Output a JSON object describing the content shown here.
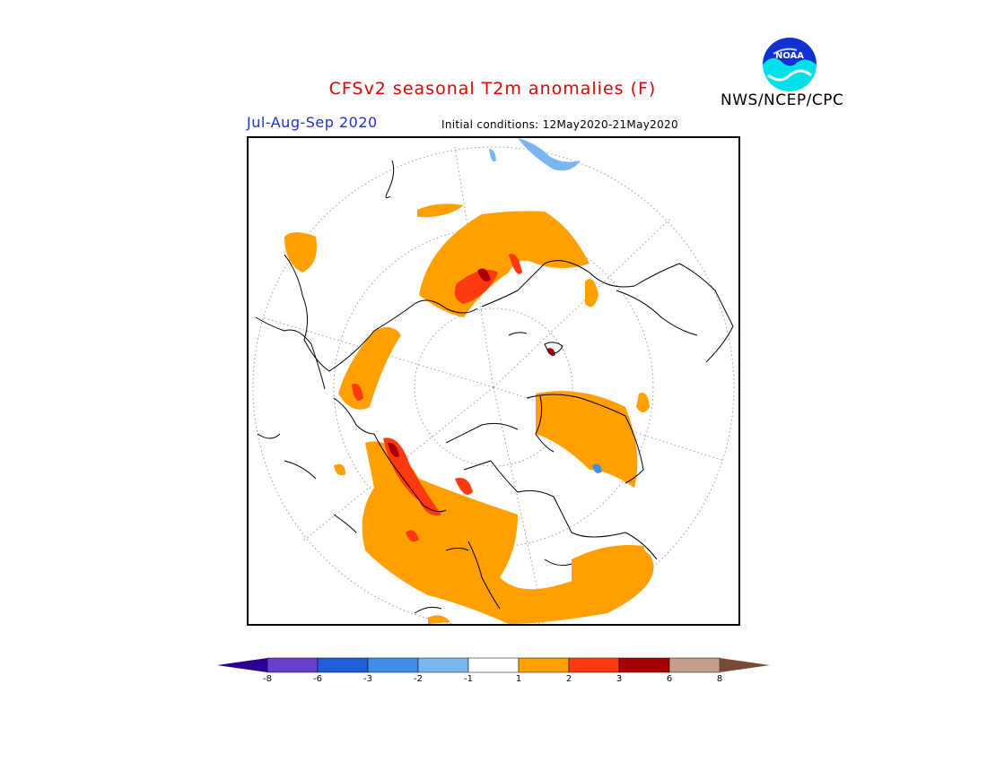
{
  "header": {
    "title": "CFSv2 seasonal T2m anomalies (F)",
    "season": "Jul-Aug-Sep 2020",
    "initial_conditions": "Initial conditions: 12May2020-21May2020",
    "agency": "NWS/NCEP/CPC",
    "logo_text": "NOAA"
  },
  "colors": {
    "title": "#e00000",
    "season": "#2030d0",
    "warm_1_2": "#ff9f00",
    "warm_2_3": "#ff3a10",
    "warm_3_6": "#a80000"
  },
  "legend": {
    "ticks": [
      "-8",
      "-6",
      "-3",
      "-2",
      "-1",
      "1",
      "2",
      "3",
      "6",
      "8"
    ],
    "bins": [
      {
        "color": "#6a3fd0"
      },
      {
        "color": "#1f5fd8"
      },
      {
        "color": "#3f8fe8"
      },
      {
        "color": "#7ab7f0"
      },
      {
        "color": "#ffffff"
      },
      {
        "color": "#ff9f00"
      },
      {
        "color": "#ff3a10"
      },
      {
        "color": "#a80000"
      },
      {
        "color": "#c4a08c"
      }
    ],
    "low_end_color": "#2a0090",
    "high_end_color": "#7a4a38"
  }
}
